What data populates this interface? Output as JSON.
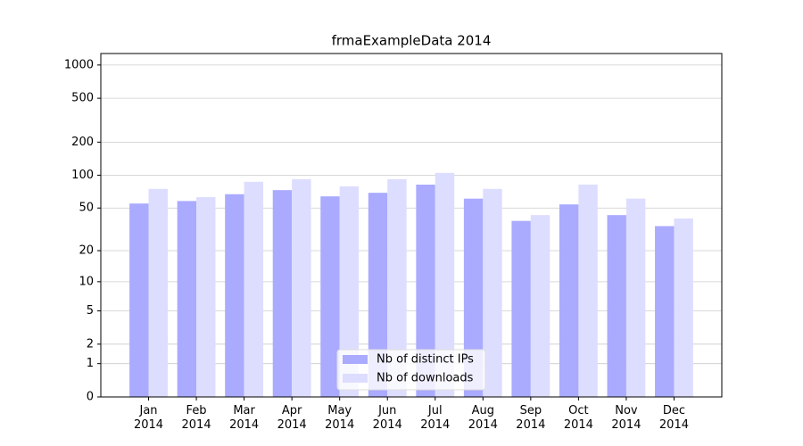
{
  "chart_data": {
    "type": "bar",
    "title": "frmaExampleData 2014",
    "categories": [
      "Jan\n2014",
      "Feb\n2014",
      "Mar\n2014",
      "Apr\n2014",
      "May\n2014",
      "Jun\n2014",
      "Jul\n2014",
      "Aug\n2014",
      "Sep\n2014",
      "Oct\n2014",
      "Nov\n2014",
      "Dec\n2014"
    ],
    "series": [
      {
        "name": "Nb of distinct IPs",
        "color": "#aaaaff",
        "values": [
          55,
          58,
          67,
          73,
          64,
          69,
          82,
          61,
          38,
          54,
          43,
          34
        ]
      },
      {
        "name": "Nb of downloads",
        "color": "#ddddff",
        "values": [
          75,
          63,
          87,
          92,
          79,
          92,
          105,
          75,
          43,
          82,
          61,
          40
        ]
      }
    ],
    "yscale": "log1p",
    "ylim": [
      0,
      1270
    ],
    "yticks": [
      0,
      1,
      2,
      5,
      10,
      20,
      50,
      100,
      200,
      500,
      1000
    ],
    "grid": true,
    "legend": "lower center"
  }
}
